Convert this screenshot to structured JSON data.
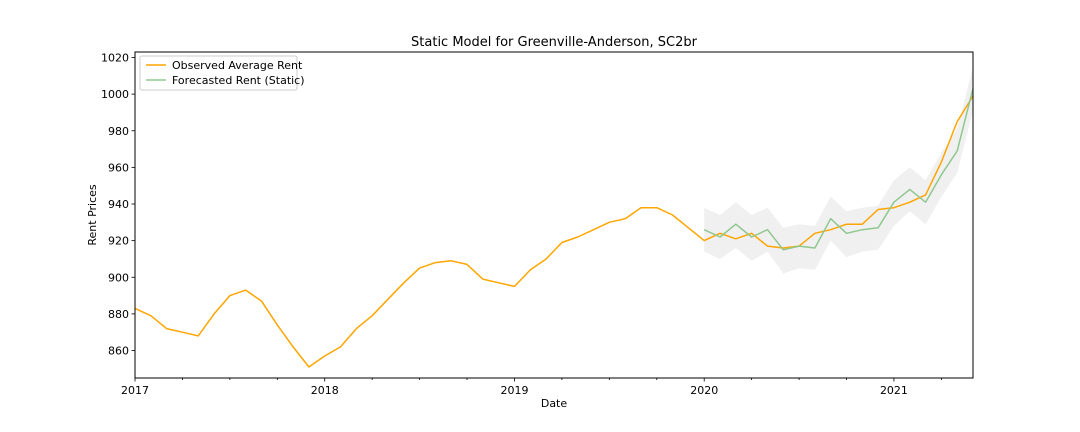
{
  "chart_data": {
    "type": "line",
    "title": "Static Model for Greenville-Anderson, SC2br",
    "xlabel": "Date",
    "ylabel": "Rent Prices",
    "xlim": [
      "2017-01",
      "2021-06"
    ],
    "ylim": [
      845,
      1023
    ],
    "x_ticks": [
      "2017",
      "2018",
      "2019",
      "2020",
      "2021"
    ],
    "y_ticks": [
      860,
      880,
      900,
      920,
      940,
      960,
      980,
      1000,
      1020
    ],
    "grid": false,
    "legend_position": "top-left",
    "series": [
      {
        "name": "Observed Average Rent",
        "color": "#ffa500",
        "x": [
          "2017-01",
          "2017-02",
          "2017-03",
          "2017-04",
          "2017-05",
          "2017-06",
          "2017-07",
          "2017-08",
          "2017-09",
          "2017-10",
          "2017-11",
          "2017-12",
          "2018-01",
          "2018-02",
          "2018-03",
          "2018-04",
          "2018-05",
          "2018-06",
          "2018-07",
          "2018-08",
          "2018-09",
          "2018-10",
          "2018-11",
          "2018-12",
          "2019-01",
          "2019-02",
          "2019-03",
          "2019-04",
          "2019-05",
          "2019-06",
          "2019-07",
          "2019-08",
          "2019-09",
          "2019-10",
          "2019-11",
          "2019-12",
          "2020-01",
          "2020-02",
          "2020-03",
          "2020-04",
          "2020-05",
          "2020-06",
          "2020-07",
          "2020-08",
          "2020-09",
          "2020-10",
          "2020-11",
          "2020-12",
          "2021-01",
          "2021-02",
          "2021-03",
          "2021-04",
          "2021-05",
          "2021-06"
        ],
        "values": [
          883,
          879,
          872,
          870,
          868,
          880,
          890,
          893,
          887,
          874,
          862,
          851,
          857,
          862,
          872,
          879,
          888,
          897,
          905,
          908,
          909,
          907,
          899,
          897,
          895,
          904,
          910,
          919,
          922,
          926,
          930,
          932,
          938,
          938,
          934,
          927,
          920,
          924,
          921,
          924,
          917,
          916,
          917,
          924,
          926,
          929,
          929,
          937,
          938,
          941,
          945,
          963,
          985,
          999
        ]
      },
      {
        "name": "Forecasted Rent (Static)",
        "color": "#8fc78f",
        "x": [
          "2020-01",
          "2020-02",
          "2020-03",
          "2020-04",
          "2020-05",
          "2020-06",
          "2020-07",
          "2020-08",
          "2020-09",
          "2020-10",
          "2020-11",
          "2020-12",
          "2021-01",
          "2021-02",
          "2021-03",
          "2021-04",
          "2021-05",
          "2021-06"
        ],
        "values": [
          926,
          922,
          929,
          922,
          926,
          915,
          917,
          916,
          932,
          924,
          926,
          927,
          941,
          948,
          941,
          956,
          969,
          1003
        ],
        "ci_lower": [
          914,
          910,
          916,
          909,
          914,
          902,
          905,
          904,
          920,
          911,
          914,
          915,
          928,
          936,
          929,
          944,
          957,
          991
        ],
        "ci_upper": [
          938,
          934,
          941,
          934,
          938,
          927,
          929,
          928,
          944,
          936,
          938,
          939,
          953,
          960,
          953,
          968,
          981,
          1015
        ]
      }
    ]
  }
}
